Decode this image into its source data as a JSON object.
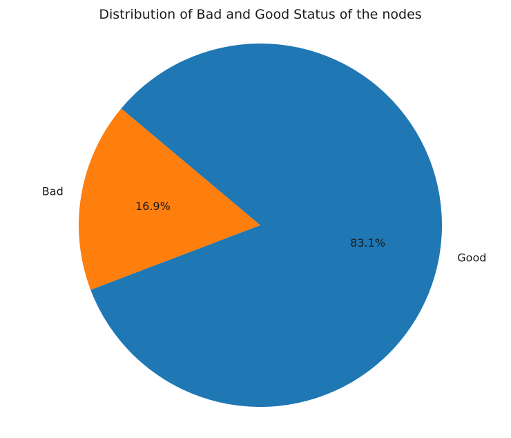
{
  "chart_data": {
    "type": "pie",
    "title": "Distribution of Bad and Good Status of the nodes",
    "slices": [
      {
        "label": "Bad",
        "value": 16.9,
        "pct_label": "16.9%",
        "color": "#ff7f0e"
      },
      {
        "label": "Good",
        "value": 83.1,
        "pct_label": "83.1%",
        "color": "#1f77b4"
      }
    ],
    "start_angle_deg": 140,
    "direction": "counterclockwise",
    "legend": "none"
  }
}
